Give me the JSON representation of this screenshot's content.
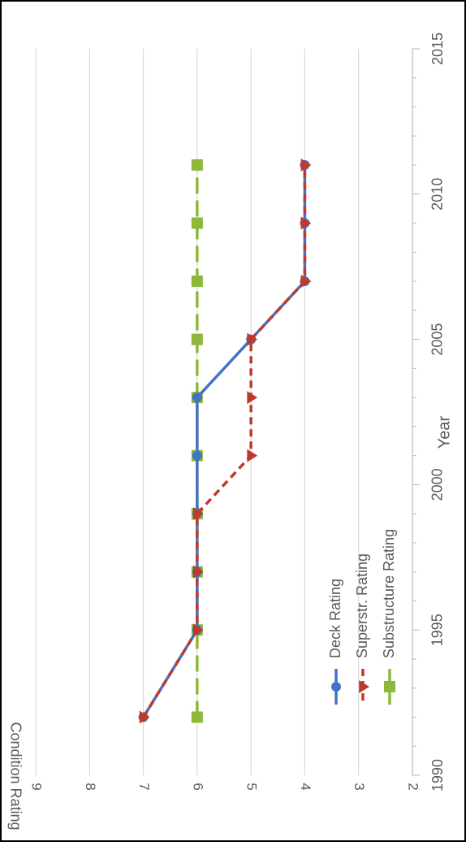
{
  "chart_data": {
    "type": "line",
    "orientation": "rotated 90 degrees clockwise",
    "title": "",
    "xlabel": "Year",
    "ylabel": "Condition Rating",
    "xlim": [
      1990,
      2015
    ],
    "ylim": [
      2,
      9
    ],
    "x_ticks": [
      "1990",
      "1995",
      "2000",
      "2005",
      "2010",
      "2015"
    ],
    "y_ticks": [
      "2",
      "3",
      "4",
      "5",
      "6",
      "7",
      "8",
      "9"
    ],
    "grid": "horizontal major gridlines",
    "legend_position": "inside, lower-left",
    "series": [
      {
        "name": "Deck Rating",
        "color": "#4472C4",
        "marker": "circle",
        "line": "solid",
        "x": [
          1992,
          1995,
          1997,
          1999,
          2001,
          2003,
          2005,
          2007,
          2009,
          2011
        ],
        "y": [
          7,
          6,
          6,
          6,
          6,
          6,
          5,
          4,
          4,
          4
        ]
      },
      {
        "name": "Superstr. Rating",
        "color": "#C0392B",
        "marker": "triangle",
        "line": "dashed",
        "x": [
          1992,
          1995,
          1997,
          1999,
          2001,
          2003,
          2005,
          2007,
          2009,
          2011
        ],
        "y": [
          7,
          6,
          6,
          6,
          5,
          5,
          5,
          4,
          4,
          4
        ]
      },
      {
        "name": "Substructure Rating",
        "color": "#8DB83C",
        "marker": "square",
        "line": "long-dashed",
        "x": [
          1992,
          1995,
          1997,
          1999,
          2001,
          2003,
          2005,
          2007,
          2009,
          2011
        ],
        "y": [
          6,
          6,
          6,
          6,
          6,
          6,
          6,
          6,
          6,
          6
        ]
      }
    ]
  }
}
